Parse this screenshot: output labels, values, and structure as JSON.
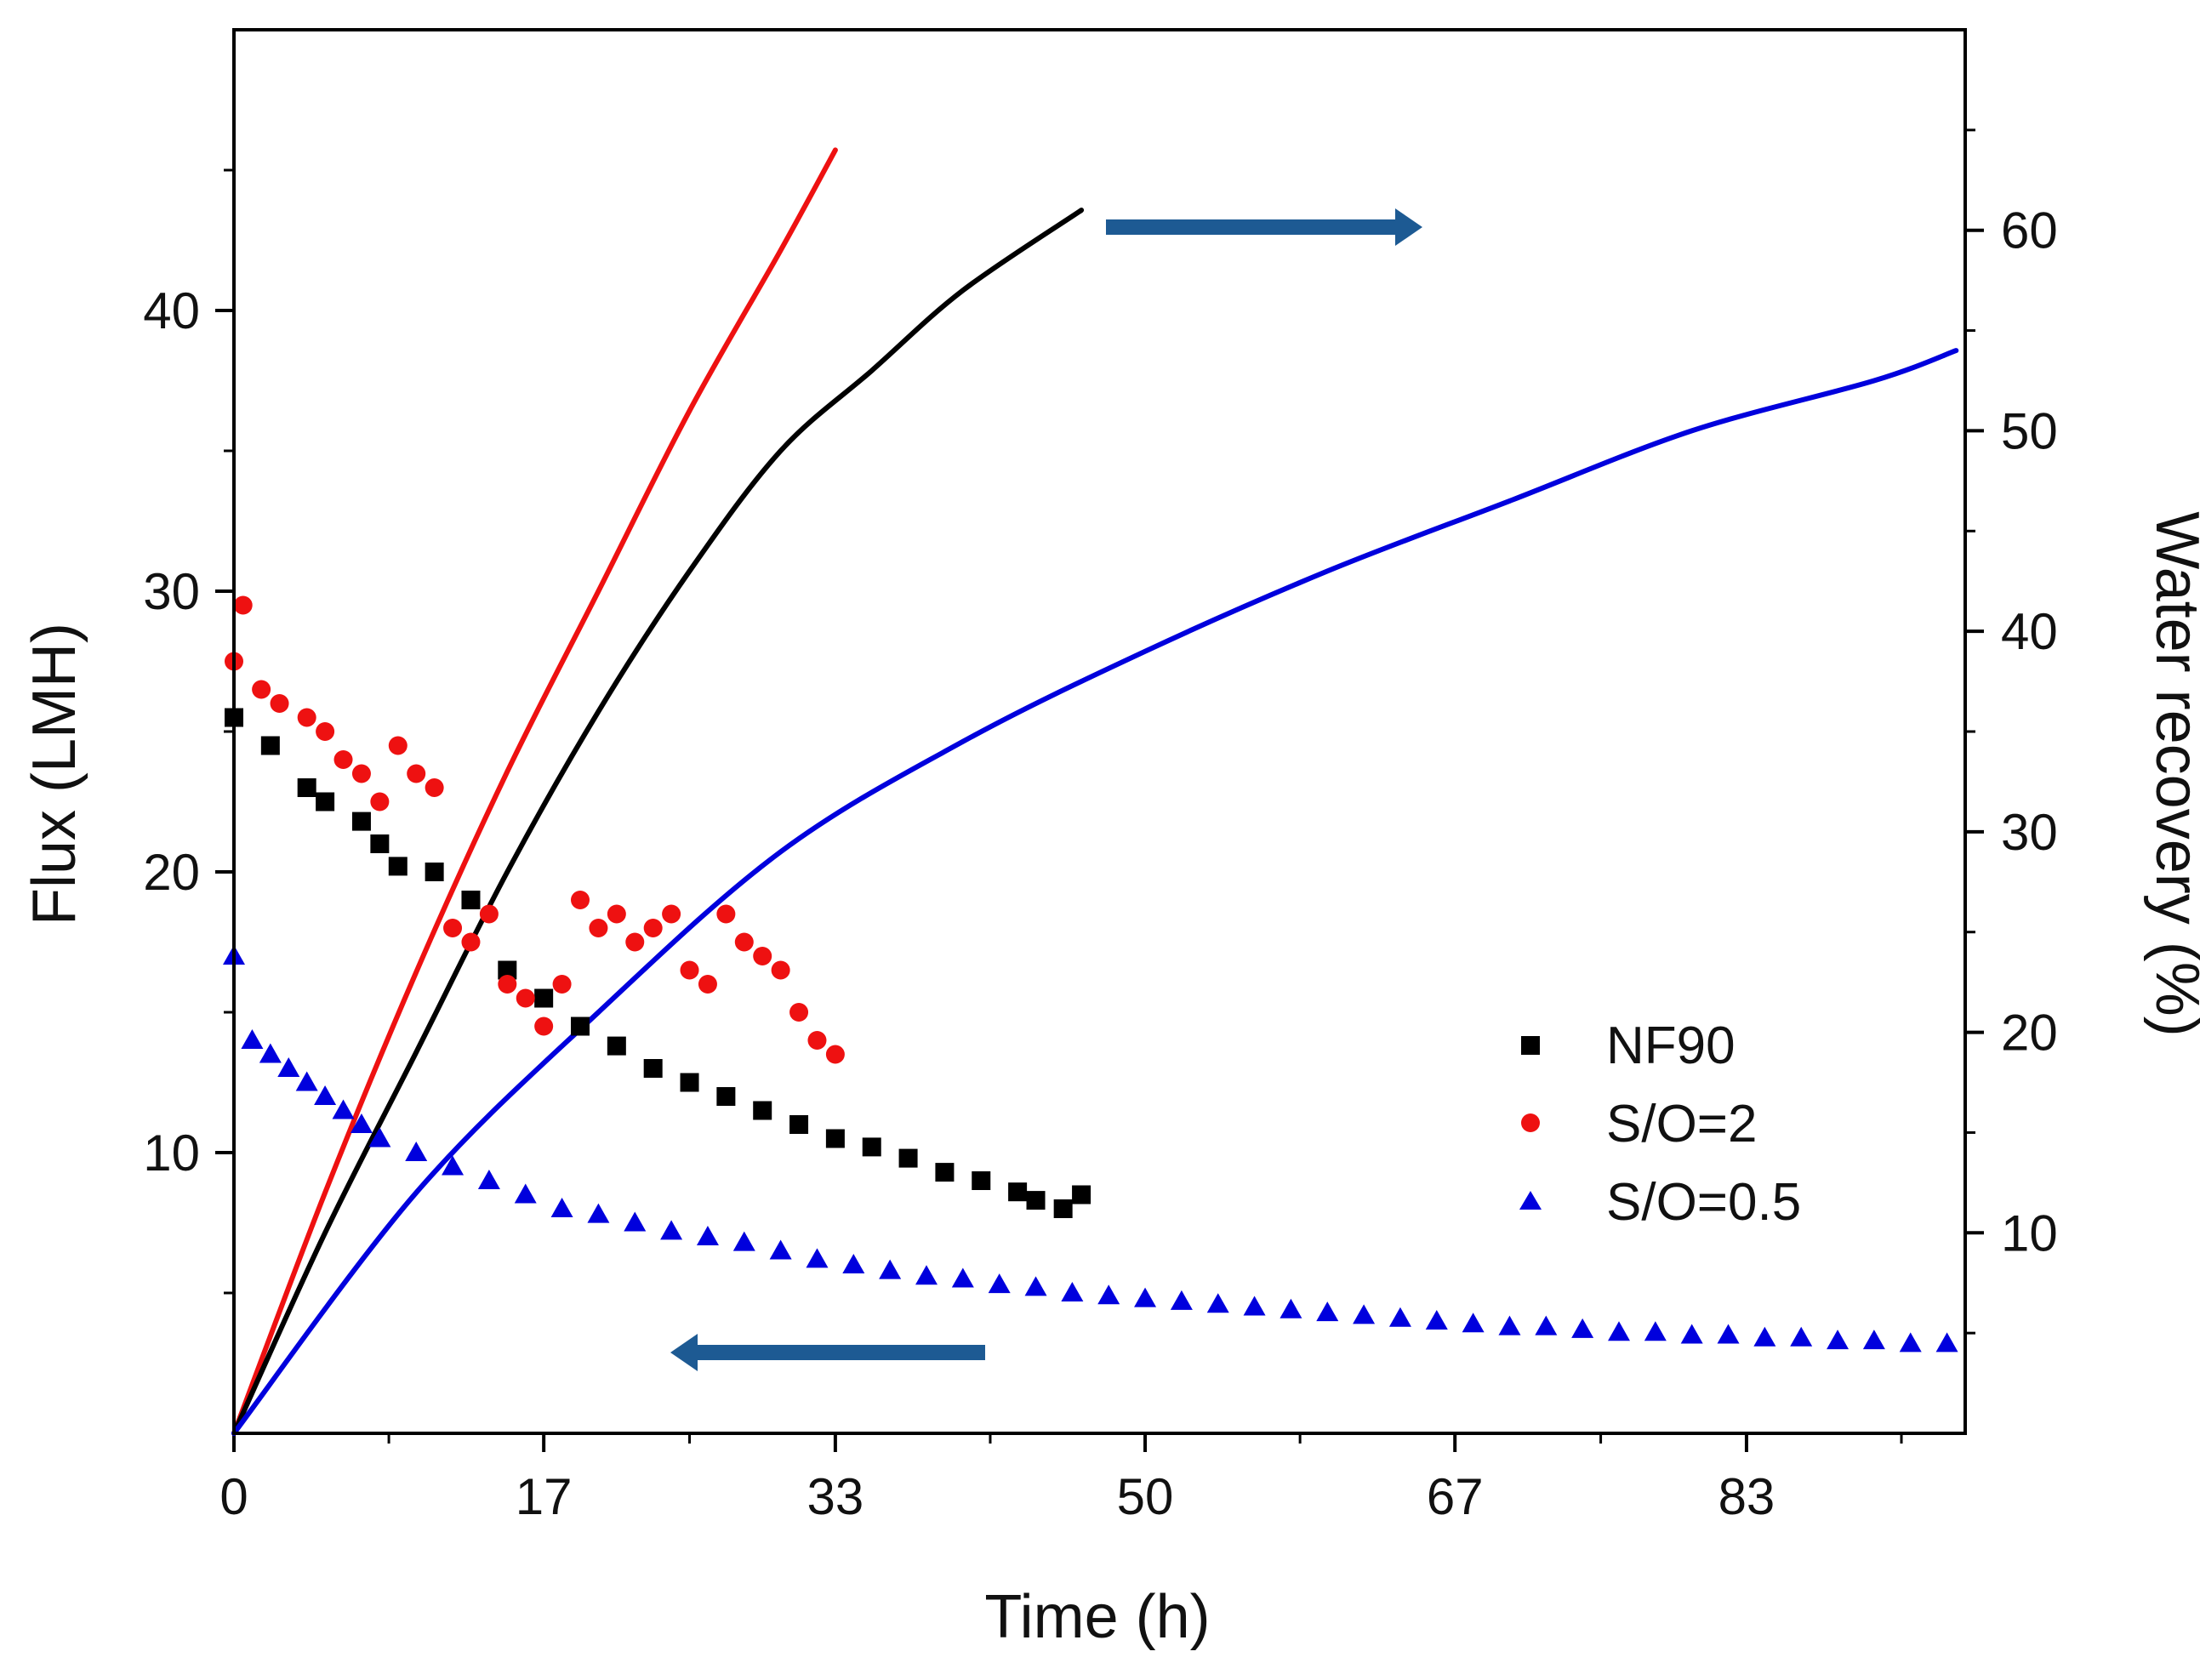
{
  "chart_data": {
    "type": "scatter",
    "xlabel": "Time (h)",
    "ylabel": "Flux (LMH)",
    "y2label": "Water recovery (%)",
    "xlim": [
      0,
      95
    ],
    "ylim": [
      0,
      50
    ],
    "y2lim": [
      0,
      70
    ],
    "x_ticks": [
      0,
      17,
      33,
      50,
      67,
      83
    ],
    "x_tick_labels": [
      "0",
      "17",
      "33",
      "50",
      "67",
      "83"
    ],
    "y_ticks": [
      10,
      20,
      30,
      40
    ],
    "y_tick_labels": [
      "10",
      "20",
      "30",
      "40"
    ],
    "y2_ticks": [
      10,
      20,
      30,
      40,
      50,
      60
    ],
    "y2_tick_labels": [
      "10",
      "20",
      "30",
      "40",
      "50",
      "60"
    ],
    "legend": [
      "NF90",
      "S/O=2",
      "S/O=0.5"
    ],
    "legend_location": "lower-right",
    "colors": {
      "NF90": "#000000",
      "S/O=2": "#ee1111",
      "S/O=0.5": "#0000dd",
      "arrow": "#1d5a93"
    },
    "annotations": [
      {
        "type": "arrow",
        "direction": "right",
        "meaning": "water recovery curves use the right axis"
      },
      {
        "type": "arrow",
        "direction": "left",
        "meaning": "flux points use the left axis"
      }
    ],
    "series": [
      {
        "name": "NF90",
        "kind": "flux",
        "axis": "left",
        "marker": "square",
        "color": "#000000",
        "x": [
          0,
          2,
          4,
          5,
          7,
          8,
          9,
          11,
          13,
          15,
          17,
          19,
          21,
          23,
          25,
          27,
          29,
          31,
          33,
          35,
          37,
          39,
          41,
          43,
          44,
          45.5,
          46.5
        ],
        "y": [
          25.5,
          24.5,
          23.0,
          22.5,
          21.8,
          21.0,
          20.2,
          20.0,
          19.0,
          16.5,
          15.5,
          14.5,
          13.8,
          13.0,
          12.5,
          12.0,
          11.5,
          11.0,
          10.5,
          10.2,
          9.8,
          9.3,
          9.0,
          8.6,
          8.3,
          8.0,
          8.5
        ]
      },
      {
        "name": "S/O=2",
        "kind": "flux",
        "axis": "left",
        "marker": "circle",
        "color": "#ee1111",
        "x": [
          0,
          0.5,
          1.5,
          2.5,
          4,
          5,
          6,
          7,
          8,
          9,
          10,
          11,
          12,
          13,
          14,
          15,
          16,
          17,
          18,
          19,
          20,
          21,
          22,
          23,
          24,
          25,
          26,
          27,
          28,
          29,
          30,
          31,
          32,
          33
        ],
        "y": [
          27.5,
          29.5,
          26.5,
          26.0,
          25.5,
          25.0,
          24.0,
          23.5,
          22.5,
          24.5,
          23.5,
          23.0,
          18.0,
          17.5,
          18.5,
          16.0,
          15.5,
          14.5,
          16.0,
          19.0,
          18.0,
          18.5,
          17.5,
          18.0,
          18.5,
          16.5,
          16.0,
          18.5,
          17.5,
          17.0,
          16.5,
          15.0,
          14.0,
          13.5
        ]
      },
      {
        "name": "S/O=0.5",
        "kind": "flux",
        "axis": "left",
        "marker": "triangle",
        "color": "#0000dd",
        "x": [
          0,
          1,
          2,
          3,
          4,
          5,
          6,
          7,
          8,
          10,
          12,
          14,
          16,
          18,
          20,
          22,
          24,
          26,
          28,
          30,
          32,
          34,
          36,
          38,
          40,
          42,
          44,
          46,
          48,
          50,
          52,
          54,
          56,
          58,
          60,
          62,
          64,
          66,
          68,
          70,
          72,
          74,
          76,
          78,
          80,
          82,
          84,
          86,
          88,
          90,
          92,
          94
        ],
        "y": [
          17.0,
          14.0,
          13.5,
          13.0,
          12.5,
          12.0,
          11.5,
          11.0,
          10.5,
          10.0,
          9.5,
          9.0,
          8.5,
          8.0,
          7.8,
          7.5,
          7.2,
          7.0,
          6.8,
          6.5,
          6.2,
          6.0,
          5.8,
          5.6,
          5.5,
          5.3,
          5.2,
          5.0,
          4.9,
          4.8,
          4.7,
          4.6,
          4.5,
          4.4,
          4.3,
          4.2,
          4.1,
          4.0,
          3.9,
          3.8,
          3.8,
          3.7,
          3.6,
          3.6,
          3.5,
          3.5,
          3.4,
          3.4,
          3.3,
          3.3,
          3.2,
          3.2
        ]
      },
      {
        "name": "S/O=2 recovery",
        "kind": "recovery",
        "axis": "right",
        "color": "#ee1111",
        "x": [
          0,
          5,
          10,
          15,
          20,
          25,
          30,
          33
        ],
        "y": [
          0,
          12,
          23,
          33,
          42,
          51,
          59,
          64
        ]
      },
      {
        "name": "NF90 recovery",
        "kind": "recovery",
        "axis": "right",
        "color": "#000000",
        "x": [
          0,
          5,
          10,
          15,
          20,
          25,
          30,
          35,
          40,
          46.5
        ],
        "y": [
          0,
          10,
          19,
          28,
          36,
          43,
          49,
          53,
          57,
          61
        ]
      },
      {
        "name": "S/O=0.5 recovery",
        "kind": "recovery",
        "axis": "right",
        "color": "#0000dd",
        "x": [
          0,
          10,
          20,
          30,
          40,
          50,
          60,
          70,
          80,
          90,
          94.5
        ],
        "y": [
          0,
          12,
          21,
          29,
          34.5,
          39,
          43,
          46.5,
          50,
          52.5,
          54
        ]
      }
    ]
  }
}
